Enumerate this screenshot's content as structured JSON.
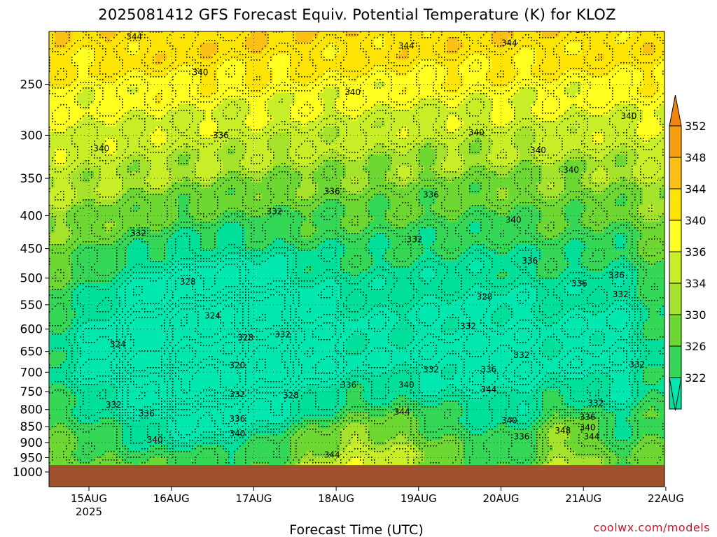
{
  "chart_data": {
    "type": "heatmap",
    "title": "2025081412 GFS Forecast Equiv. Potential Temperature (K) for KLOZ",
    "xlabel": "Forecast Time (UTC)",
    "ylabel": "",
    "credit": "coolwx.com/models",
    "x_ticks": [
      "15AUG",
      "16AUG",
      "17AUG",
      "18AUG",
      "19AUG",
      "20AUG",
      "21AUG",
      "22AUG"
    ],
    "x_year": "2025",
    "y_ticks": [
      250,
      300,
      350,
      400,
      450,
      500,
      550,
      600,
      650,
      700,
      750,
      800,
      850,
      900,
      950,
      1000
    ],
    "y_scale": "log-pressure (inverted)",
    "ylim": [
      200,
      1025
    ],
    "grid": true,
    "colorbar": {
      "levels": [
        352,
        348,
        344,
        340,
        336,
        334,
        330,
        326,
        322
      ],
      "colors": [
        "#f59f0f",
        "#fbbf16",
        "#fde405",
        "#ffff20",
        "#c8ee28",
        "#a4e22c",
        "#6ed832",
        "#34d856",
        "#00e09a"
      ],
      "top_color": "#f08410",
      "bottom_color": "#00e8b0"
    },
    "contour_labels": [
      {
        "day": 15.55,
        "p": 213,
        "label": "344"
      },
      {
        "day": 16.35,
        "p": 242,
        "label": "340"
      },
      {
        "day": 15.15,
        "p": 318,
        "label": "340"
      },
      {
        "day": 16.6,
        "p": 303,
        "label": "336"
      },
      {
        "day": 15.6,
        "p": 430,
        "label": "332"
      },
      {
        "day": 16.2,
        "p": 512,
        "label": "328"
      },
      {
        "day": 16.5,
        "p": 578,
        "label": "324"
      },
      {
        "day": 15.35,
        "p": 640,
        "label": "324"
      },
      {
        "day": 16.8,
        "p": 690,
        "label": "320"
      },
      {
        "day": 16.9,
        "p": 625,
        "label": "328"
      },
      {
        "day": 17.35,
        "p": 618,
        "label": "332"
      },
      {
        "day": 17.45,
        "p": 768,
        "label": "328"
      },
      {
        "day": 16.8,
        "p": 765,
        "label": "332"
      },
      {
        "day": 15.3,
        "p": 795,
        "label": "332"
      },
      {
        "day": 15.7,
        "p": 820,
        "label": "336"
      },
      {
        "day": 16.8,
        "p": 835,
        "label": "336"
      },
      {
        "day": 15.8,
        "p": 900,
        "label": "340"
      },
      {
        "day": 16.8,
        "p": 880,
        "label": "340"
      },
      {
        "day": 17.25,
        "p": 398,
        "label": "332"
      },
      {
        "day": 17.95,
        "p": 370,
        "label": "336"
      },
      {
        "day": 18.2,
        "p": 260,
        "label": "340"
      },
      {
        "day": 18.85,
        "p": 220,
        "label": "344"
      },
      {
        "day": 18.15,
        "p": 740,
        "label": "336"
      },
      {
        "day": 17.95,
        "p": 950,
        "label": "344"
      },
      {
        "day": 18.95,
        "p": 440,
        "label": "332"
      },
      {
        "day": 19.15,
        "p": 375,
        "label": "336"
      },
      {
        "day": 18.85,
        "p": 740,
        "label": "340"
      },
      {
        "day": 19.15,
        "p": 700,
        "label": "332"
      },
      {
        "day": 18.8,
        "p": 815,
        "label": "344"
      },
      {
        "day": 19.7,
        "p": 300,
        "label": "340"
      },
      {
        "day": 20.1,
        "p": 218,
        "label": "344"
      },
      {
        "day": 21.0,
        "p": 208,
        "label": "344"
      },
      {
        "day": 20.45,
        "p": 320,
        "label": "340"
      },
      {
        "day": 20.85,
        "p": 343,
        "label": "340"
      },
      {
        "day": 21.55,
        "p": 283,
        "label": "340"
      },
      {
        "day": 20.15,
        "p": 410,
        "label": "340"
      },
      {
        "day": 20.35,
        "p": 475,
        "label": "336"
      },
      {
        "day": 19.8,
        "p": 540,
        "label": "328"
      },
      {
        "day": 19.6,
        "p": 600,
        "label": "332"
      },
      {
        "day": 20.25,
        "p": 665,
        "label": "332"
      },
      {
        "day": 19.85,
        "p": 700,
        "label": "336"
      },
      {
        "day": 19.85,
        "p": 752,
        "label": "344"
      },
      {
        "day": 20.1,
        "p": 840,
        "label": "340"
      },
      {
        "day": 20.25,
        "p": 890,
        "label": "336"
      },
      {
        "day": 20.75,
        "p": 872,
        "label": "348"
      },
      {
        "day": 21.1,
        "p": 890,
        "label": "344"
      },
      {
        "day": 21.05,
        "p": 862,
        "label": "340"
      },
      {
        "day": 21.05,
        "p": 830,
        "label": "336"
      },
      {
        "day": 21.15,
        "p": 790,
        "label": "332"
      },
      {
        "day": 21.4,
        "p": 500,
        "label": "336"
      },
      {
        "day": 20.95,
        "p": 515,
        "label": "336"
      },
      {
        "day": 21.45,
        "p": 535,
        "label": "332"
      },
      {
        "day": 21.65,
        "p": 688,
        "label": "332"
      }
    ]
  }
}
